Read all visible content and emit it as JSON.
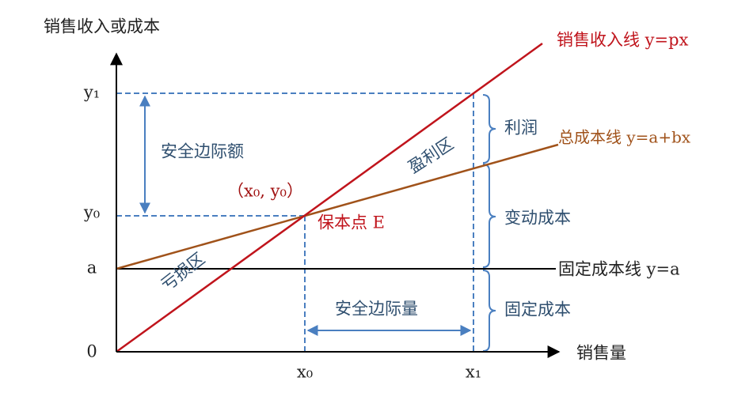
{
  "axes": {
    "y_title": "销售收入或成本",
    "x_title": "销售量",
    "y_labels": [
      "y₁",
      "y₀",
      "a",
      "0"
    ],
    "x_labels": [
      "x₀",
      "x₁"
    ]
  },
  "lines": {
    "revenue": "销售收入线 y=px",
    "total_cost": "总成本线 y=a+bx",
    "fixed_cost": "固定成本线 y=a"
  },
  "regions": {
    "profit_zone": "盈利区",
    "loss_zone": "亏损区"
  },
  "break_even": {
    "coords": "（x₀, y₀）",
    "label": "保本点 E"
  },
  "annotations": {
    "safety_margin_amount": "安全边际额",
    "safety_margin_volume": "安全边际量",
    "profit": "利润",
    "variable_cost": "变动成本",
    "fixed_cost": "固定成本"
  }
}
